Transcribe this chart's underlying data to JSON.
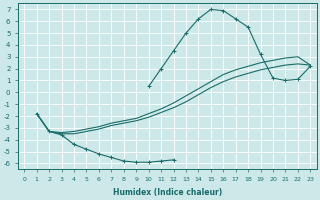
{
  "xlabel": "Humidex (Indice chaleur)",
  "xlim": [
    -0.5,
    23.5
  ],
  "ylim": [
    -6.5,
    7.5
  ],
  "xticks": [
    0,
    1,
    2,
    3,
    4,
    5,
    6,
    7,
    8,
    9,
    10,
    11,
    12,
    13,
    14,
    15,
    16,
    17,
    18,
    19,
    20,
    21,
    22,
    23
  ],
  "yticks": [
    -6,
    -5,
    -4,
    -3,
    -2,
    -1,
    0,
    1,
    2,
    3,
    4,
    5,
    6,
    7
  ],
  "bg_color": "#cce8e8",
  "line_color": "#1a6b6b",
  "grid_color": "#b8d8d8",
  "curve_hump_x": [
    10,
    11,
    12,
    13,
    14,
    15,
    16,
    17,
    18,
    19,
    20,
    21,
    22,
    23
  ],
  "curve_hump_y": [
    0.5,
    2.0,
    3.5,
    5.0,
    6.2,
    7.0,
    6.9,
    6.2,
    5.5,
    3.2,
    1.2,
    1.0,
    1.1,
    2.2
  ],
  "curve_dip_x": [
    1,
    2,
    3,
    4,
    5,
    6,
    7,
    8,
    9,
    10,
    11,
    12
  ],
  "curve_dip_y": [
    -1.8,
    -3.3,
    -3.6,
    -4.4,
    -4.8,
    -5.2,
    -5.5,
    -5.8,
    -5.9,
    -5.9,
    -5.8,
    -5.7
  ],
  "curve_linear1_x": [
    1,
    2,
    3,
    4,
    5,
    6,
    7,
    8,
    9,
    10,
    11,
    12,
    13,
    14,
    15,
    16,
    17,
    18,
    19,
    20,
    21,
    22,
    23
  ],
  "curve_linear1_y": [
    -1.8,
    -3.3,
    -3.5,
    -3.5,
    -3.3,
    -3.1,
    -2.8,
    -2.6,
    -2.4,
    -2.1,
    -1.7,
    -1.3,
    -0.8,
    -0.2,
    0.4,
    0.9,
    1.3,
    1.6,
    1.9,
    2.1,
    2.3,
    2.4,
    2.3
  ],
  "curve_linear2_x": [
    1,
    2,
    3,
    4,
    5,
    6,
    7,
    8,
    9,
    10,
    11,
    12,
    13,
    14,
    15,
    16,
    17,
    18,
    19,
    20,
    21,
    22,
    23
  ],
  "curve_linear2_y": [
    -1.8,
    -3.3,
    -3.4,
    -3.3,
    -3.1,
    -2.9,
    -2.6,
    -2.4,
    -2.2,
    -1.8,
    -1.4,
    -0.9,
    -0.3,
    0.3,
    0.9,
    1.5,
    1.9,
    2.2,
    2.5,
    2.7,
    2.9,
    3.0,
    2.3
  ]
}
